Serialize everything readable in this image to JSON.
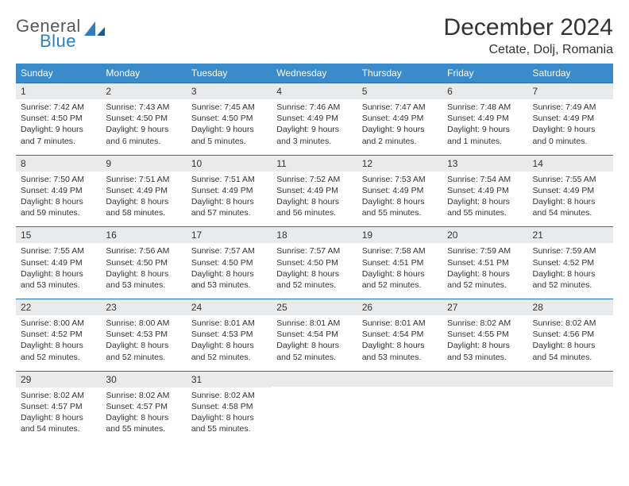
{
  "brand": {
    "general": "General",
    "blue": "Blue"
  },
  "title": "December 2024",
  "location": "Cetate, Dolj, Romania",
  "colors": {
    "header_bg": "#3a8bc9",
    "header_text": "#ffffff",
    "daynum_bg": "#e9eaec",
    "rule": "#2d6fa8",
    "logo_gray": "#555a5f",
    "logo_blue": "#2d7fc1"
  },
  "day_names": [
    "Sunday",
    "Monday",
    "Tuesday",
    "Wednesday",
    "Thursday",
    "Friday",
    "Saturday"
  ],
  "weeks": [
    [
      {
        "n": "1",
        "sr": "7:42 AM",
        "ss": "4:50 PM",
        "dh": "9",
        "dm": "7"
      },
      {
        "n": "2",
        "sr": "7:43 AM",
        "ss": "4:50 PM",
        "dh": "9",
        "dm": "6"
      },
      {
        "n": "3",
        "sr": "7:45 AM",
        "ss": "4:50 PM",
        "dh": "9",
        "dm": "5"
      },
      {
        "n": "4",
        "sr": "7:46 AM",
        "ss": "4:49 PM",
        "dh": "9",
        "dm": "3"
      },
      {
        "n": "5",
        "sr": "7:47 AM",
        "ss": "4:49 PM",
        "dh": "9",
        "dm": "2"
      },
      {
        "n": "6",
        "sr": "7:48 AM",
        "ss": "4:49 PM",
        "dh": "9",
        "dm": "1"
      },
      {
        "n": "7",
        "sr": "7:49 AM",
        "ss": "4:49 PM",
        "dh": "9",
        "dm": "0"
      }
    ],
    [
      {
        "n": "8",
        "sr": "7:50 AM",
        "ss": "4:49 PM",
        "dh": "8",
        "dm": "59"
      },
      {
        "n": "9",
        "sr": "7:51 AM",
        "ss": "4:49 PM",
        "dh": "8",
        "dm": "58"
      },
      {
        "n": "10",
        "sr": "7:51 AM",
        "ss": "4:49 PM",
        "dh": "8",
        "dm": "57"
      },
      {
        "n": "11",
        "sr": "7:52 AM",
        "ss": "4:49 PM",
        "dh": "8",
        "dm": "56"
      },
      {
        "n": "12",
        "sr": "7:53 AM",
        "ss": "4:49 PM",
        "dh": "8",
        "dm": "55"
      },
      {
        "n": "13",
        "sr": "7:54 AM",
        "ss": "4:49 PM",
        "dh": "8",
        "dm": "55"
      },
      {
        "n": "14",
        "sr": "7:55 AM",
        "ss": "4:49 PM",
        "dh": "8",
        "dm": "54"
      }
    ],
    [
      {
        "n": "15",
        "sr": "7:55 AM",
        "ss": "4:49 PM",
        "dh": "8",
        "dm": "53"
      },
      {
        "n": "16",
        "sr": "7:56 AM",
        "ss": "4:50 PM",
        "dh": "8",
        "dm": "53"
      },
      {
        "n": "17",
        "sr": "7:57 AM",
        "ss": "4:50 PM",
        "dh": "8",
        "dm": "53"
      },
      {
        "n": "18",
        "sr": "7:57 AM",
        "ss": "4:50 PM",
        "dh": "8",
        "dm": "52"
      },
      {
        "n": "19",
        "sr": "7:58 AM",
        "ss": "4:51 PM",
        "dh": "8",
        "dm": "52"
      },
      {
        "n": "20",
        "sr": "7:59 AM",
        "ss": "4:51 PM",
        "dh": "8",
        "dm": "52"
      },
      {
        "n": "21",
        "sr": "7:59 AM",
        "ss": "4:52 PM",
        "dh": "8",
        "dm": "52"
      }
    ],
    [
      {
        "n": "22",
        "sr": "8:00 AM",
        "ss": "4:52 PM",
        "dh": "8",
        "dm": "52"
      },
      {
        "n": "23",
        "sr": "8:00 AM",
        "ss": "4:53 PM",
        "dh": "8",
        "dm": "52"
      },
      {
        "n": "24",
        "sr": "8:01 AM",
        "ss": "4:53 PM",
        "dh": "8",
        "dm": "52"
      },
      {
        "n": "25",
        "sr": "8:01 AM",
        "ss": "4:54 PM",
        "dh": "8",
        "dm": "52"
      },
      {
        "n": "26",
        "sr": "8:01 AM",
        "ss": "4:54 PM",
        "dh": "8",
        "dm": "53"
      },
      {
        "n": "27",
        "sr": "8:02 AM",
        "ss": "4:55 PM",
        "dh": "8",
        "dm": "53"
      },
      {
        "n": "28",
        "sr": "8:02 AM",
        "ss": "4:56 PM",
        "dh": "8",
        "dm": "54"
      }
    ],
    [
      {
        "n": "29",
        "sr": "8:02 AM",
        "ss": "4:57 PM",
        "dh": "8",
        "dm": "54"
      },
      {
        "n": "30",
        "sr": "8:02 AM",
        "ss": "4:57 PM",
        "dh": "8",
        "dm": "55"
      },
      {
        "n": "31",
        "sr": "8:02 AM",
        "ss": "4:58 PM",
        "dh": "8",
        "dm": "55"
      },
      null,
      null,
      null,
      null
    ]
  ],
  "labels": {
    "sunrise": "Sunrise:",
    "sunset": "Sunset:",
    "daylight": "Daylight:",
    "hours": "hours",
    "and": "and",
    "minutes": "minutes."
  }
}
